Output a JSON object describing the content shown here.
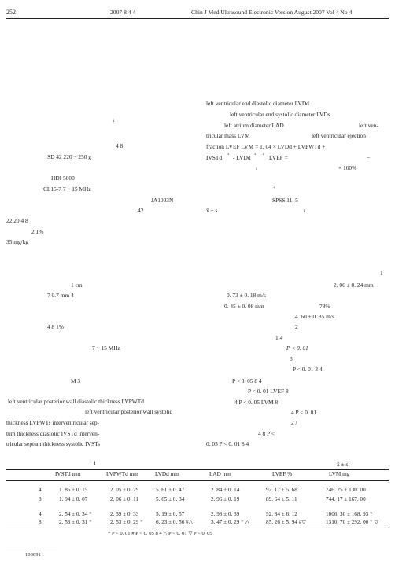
{
  "header": {
    "page_number": "252",
    "cn_date": "2007   8        4        4",
    "journal_en": "Chin J Med Ultrasound   Electronic Version   August 2007   Vol 4   No 4"
  },
  "left_column": [
    "1",
    "4   8",
    "SD          42              220 ~ 250  g",
    "HDI 5000",
    "CL15-7                     7 ~ 15  MHz",
    "JA1003N",
    "42",
    "22                        20                              4      8",
    "2                                               1%",
    "35  mg/kg",
    "1  cm",
    "7                          0.7  mm          4",
    "4   8                                                    1%",
    "7 ~ 15  MHz",
    "M                                                          3",
    "left ventricular posterior wall diastolic thickness   LVPWTd",
    "left ventricular posterior wall systolic",
    "thickness    LVPWTs                                 interventricular  sep-",
    "tum thickness  diastolic   IVSTd                                       interven-",
    "tricular septum thickness systolic   IVSTs"
  ],
  "right_column": [
    "left ventricular end diastolic diameter   LVDd",
    "left ventricular end systolic diameter   LVDs",
    "left atrium diameter    LAD",
    "left  ven-",
    "tricular mass    LVM",
    "left  ventricular  ejection",
    "fraction   LVEF      LVM  =  1. 04  ×       LVDd  +  LVPWTd  +",
    "IVSTd",
    "3",
    "- LVDd",
    "3",
    "1",
    "LVEF =",
    "−",
    "/",
    "× 100%",
    "+",
    "SPSS 11. 5",
    "x̄ ± s",
    "t",
    "1",
    "2. 06 ± 0. 24   mm",
    "0. 73 ± 0. 18   m/s",
    "0. 45 ± 0. 08   mm",
    "78%",
    "4. 60 ± 0. 85   m/s",
    "2",
    "1              4",
    "P < 0. 01",
    "8",
    "P < 0. 01       3   4",
    "P < 0. 05               8          4",
    "P < 0. 01       LVEF                8",
    "4                           P < 0. 05     LVM                8",
    "4                          P < 0. 01",
    "2                                                /",
    "4   8                                                                      P <",
    "0. 05     P < 0. 01                              8         4"
  ],
  "table": {
    "title": "1",
    "subtitle": "x̄ ± s",
    "headers": [
      "IVSTd  mm",
      "LVPWTd  mm",
      "LVDd  mm",
      "LAD  mm",
      "LVEF   %",
      "LVM  mg"
    ],
    "rows": [
      [
        "4",
        "1. 86 ± 0. 15",
        "2. 05 ± 0. 29",
        "5. 61 ± 0. 47",
        "2. 84 ± 0. 14",
        "92. 17 ± 5. 68",
        "746. 25 ± 130. 00"
      ],
      [
        "8",
        "1. 94 ± 0. 07",
        "2. 06 ± 0. 11",
        "5. 65 ± 0. 34",
        "2. 96 ± 0. 19",
        "89. 64 ± 5. 11",
        "744. 17 ± 167. 00"
      ],
      [
        "4",
        "2. 54 ± 0. 34 *",
        "2. 39 ± 0. 33",
        "5. 19 ± 0. 57",
        "2. 98 ± 0. 39",
        "92. 84 ± 6. 12",
        "1006. 30 ± 168. 93 *"
      ],
      [
        "8",
        "2. 53 ± 0. 31 *",
        "2. 53 ± 0. 29 *",
        "6. 23 ± 0. 56 #△",
        "3. 47 ± 0. 29 * △",
        "85. 26 ± 5. 94 #▽",
        "1310. 70 ± 292. 00 * ▽"
      ]
    ],
    "footnote": "* P < 0. 01    # P < 0. 05               8          4               △ P < 0. 01    ▽ P < 0. 05"
  },
  "footer": {
    "postal": "100091"
  }
}
